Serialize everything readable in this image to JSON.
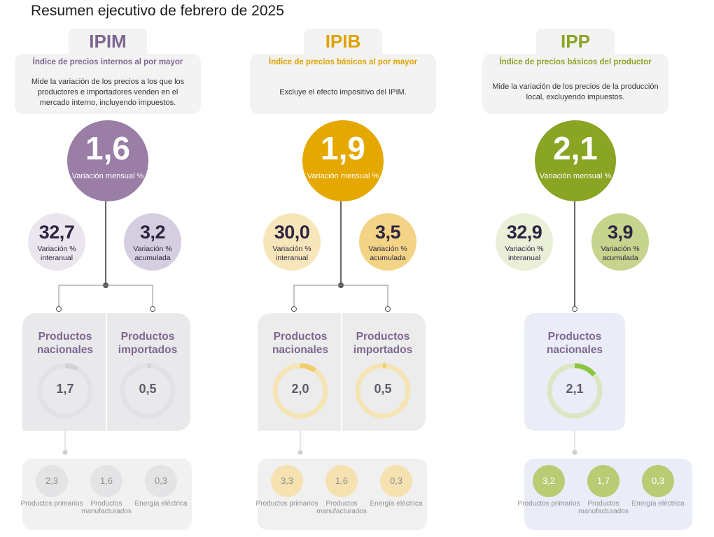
{
  "title": "Resumen ejecutivo de febrero de 2025",
  "columns": [
    {
      "id": "ipim",
      "tab": "IPIM",
      "subtitle": "Índice de precios internos al por mayor",
      "description": "Mide la variación de los precios a los que los productores e importadores venden en el mercado interno, incluyendo impuestos.",
      "main_value": "1,6",
      "main_label": "Variación mensual %",
      "interanual": {
        "value": "32,7",
        "label": "Variación % interanual"
      },
      "acumulada": {
        "value": "3,2",
        "label": "Variación % acumulada"
      },
      "products": [
        {
          "title": "Productos nacionales",
          "value": "1,7",
          "ring_fraction": 0.08
        },
        {
          "title": "Productos importados",
          "value": "0,5",
          "ring_fraction": 0.02
        }
      ],
      "breakdown": [
        {
          "value": "2,3",
          "label": "Productos primarios"
        },
        {
          "value": "1,6",
          "label": "Productos manufacturados"
        },
        {
          "value": "0,3",
          "label": "Energía eléctrica"
        }
      ],
      "colors": {
        "accent": "#9a7ea6",
        "title_text": "#7d6790",
        "sub_text": "#7d6790",
        "light": "#ebe6ee",
        "medium": "#d5cde0",
        "box": "#e9e9ec",
        "ring_bg": "#e2e2e6",
        "ring_fg": "#d3d0d8",
        "sub_bg": "#f1f1f1",
        "sub_circle": "#e4e4e6",
        "sub_circle_text": "#8e8e8e"
      }
    },
    {
      "id": "ipib",
      "tab": "IPIB",
      "subtitle": "Índice de precios básicos al por mayor",
      "description": "Excluye el efecto impositivo del IPIM.",
      "main_value": "1,9",
      "main_label": "Variación mensual %",
      "interanual": {
        "value": "30,0",
        "label": "Variación % interanual"
      },
      "acumulada": {
        "value": "3,5",
        "label": "Variación % acumulada"
      },
      "products": [
        {
          "title": "Productos nacionales",
          "value": "2,0",
          "ring_fraction": 0.1
        },
        {
          "title": "Productos importados",
          "value": "0,5",
          "ring_fraction": 0.02
        }
      ],
      "breakdown": [
        {
          "value": "3,3",
          "label": "Productos primarios"
        },
        {
          "value": "1,6",
          "label": "Productos manufacturados"
        },
        {
          "value": "0,3",
          "label": "Energía eléctrica"
        }
      ],
      "colors": {
        "accent": "#e5a800",
        "title_text": "#e1a200",
        "sub_text": "#e1a200",
        "light": "#f8e6bb",
        "medium": "#f3d486",
        "box": "#ececec",
        "ring_bg": "#f5e4b4",
        "ring_fg": "#f0cd6a",
        "sub_bg": "#f0f0f0",
        "sub_circle": "#f5e2b0",
        "sub_circle_text": "#8e8e8e"
      }
    },
    {
      "id": "ipp",
      "tab": "IPP",
      "subtitle": "Índice de precios básicos del productor",
      "description": "Mide la variación de los precios de la producción local, excluyendo impuestos.",
      "main_value": "2,1",
      "main_label": "Variación mensual %",
      "interanual": {
        "value": "32,9",
        "label": "Variación % interanual"
      },
      "acumulada": {
        "value": "3,9",
        "label": "Variación % acumulada"
      },
      "products": [
        {
          "title": "Productos nacionales",
          "value": "2,1",
          "ring_fraction": 0.14
        }
      ],
      "breakdown": [
        {
          "value": "3,2",
          "label": "Productos primarios"
        },
        {
          "value": "1,7",
          "label": "Productos manufacturados"
        },
        {
          "value": "0,3",
          "label": "Energía eléctrica"
        }
      ],
      "colors": {
        "accent": "#8aa424",
        "title_text": "#8aa424",
        "sub_text": "#8aa424",
        "light": "#eaefd8",
        "medium": "#c6d48d",
        "box": "#eaedf7",
        "ring_bg": "#dbe6c2",
        "ring_fg": "#8cc63e",
        "sub_bg": "#eaedf7",
        "sub_circle": "#b9cc74",
        "sub_circle_text": "#ffffff"
      }
    }
  ]
}
